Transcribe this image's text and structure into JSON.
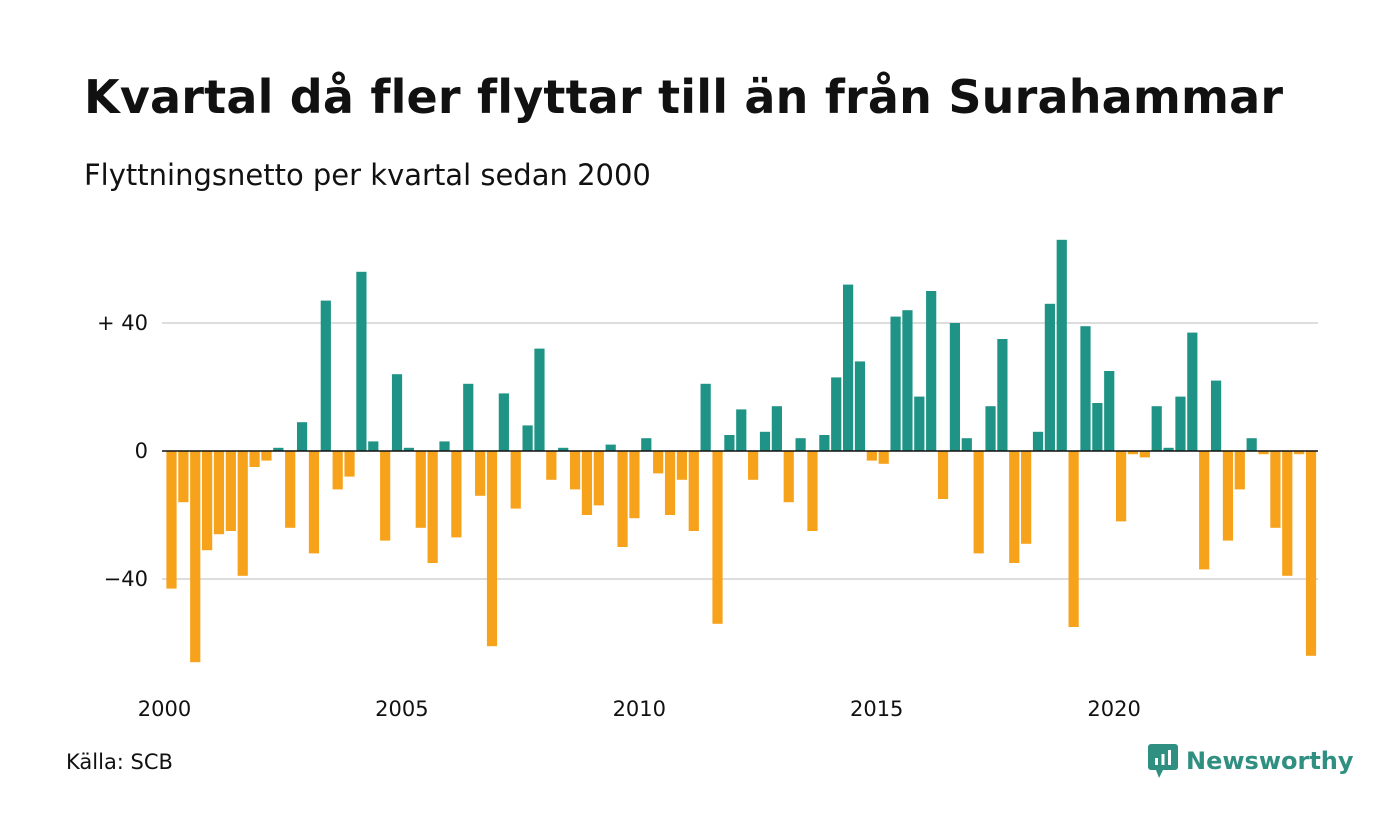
{
  "header": {
    "title": "Kvartal då fler flyttar till än från Surahammar",
    "subtitle": "Flyttningsnetto per kvartal sedan 2000"
  },
  "footer": {
    "source": "Källa: SCB",
    "brand": "Newsworthy",
    "brand_icon": "newsworthy-logo-icon"
  },
  "colors": {
    "positive": "#1f9486",
    "negative": "#f7a21b",
    "grid": "#dddddd",
    "axis": "#111111",
    "brand": "#2f8f80"
  },
  "chart_data": {
    "type": "bar",
    "x_start": "2000 Q1",
    "series": [
      {
        "values": [
          -43,
          -16,
          -66,
          -31,
          -26,
          -25,
          -39,
          -5,
          -3,
          1,
          -24,
          9,
          -32,
          47,
          -12,
          -8,
          56,
          3,
          -28,
          24,
          1,
          -24,
          -35,
          3,
          -27,
          21,
          -14,
          -61,
          18,
          -18,
          8,
          32,
          -9,
          1,
          -12,
          -20,
          -17,
          2,
          -30,
          -21,
          4,
          -7,
          -20,
          -9,
          -25,
          21,
          -54,
          5,
          13,
          -9,
          6,
          14,
          -16,
          4,
          -25,
          5,
          23,
          52,
          28,
          -3,
          -4,
          42,
          44,
          17,
          50,
          -15,
          40,
          4,
          -32,
          14,
          35,
          -35,
          -29,
          6,
          46,
          66,
          -55,
          39,
          15,
          25,
          -22,
          -1,
          -2,
          14,
          1,
          17,
          37,
          -37,
          22,
          -28,
          -12,
          4,
          -1,
          -24,
          -39,
          -1,
          -64
        ]
      }
    ],
    "x_ticks": [
      "2000",
      "2005",
      "2010",
      "2015",
      "2020"
    ],
    "y_ticks": [
      {
        "value": 40,
        "label": "+ 40"
      },
      {
        "value": 0,
        "label": "0"
      },
      {
        "value": -40,
        "label": "−40"
      }
    ],
    "ylim": [
      -70,
      70
    ],
    "grid": true
  }
}
